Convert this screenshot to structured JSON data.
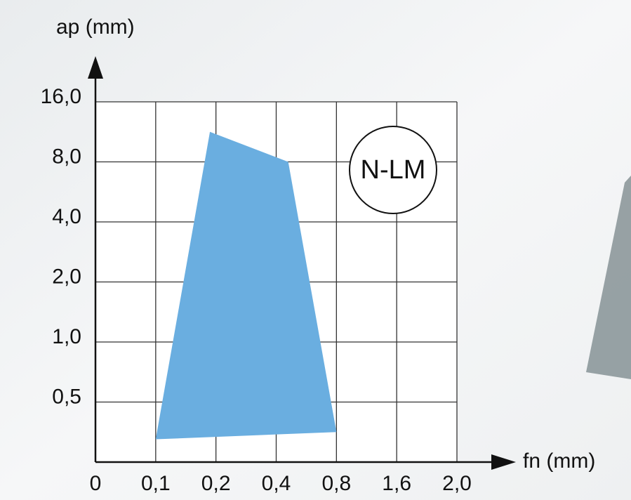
{
  "chart_data": {
    "type": "area",
    "xlabel": "fn (mm)",
    "ylabel": "ap (mm)",
    "label": "N-LM",
    "x": [
      0.1,
      0.19,
      0.48,
      0.8
    ],
    "values": [
      0.19,
      12,
      8,
      0.25
    ],
    "color": "#6aaee0",
    "xlim": [
      0,
      2.0
    ],
    "ylim": [
      0,
      16.0
    ],
    "xticks": [
      0,
      {
        "value": 0.1,
        "label": "0,1"
      },
      {
        "value": 0.2,
        "label": "0,2"
      },
      {
        "value": 0.4,
        "label": "0,4"
      },
      {
        "value": 0.8,
        "label": "0,8"
      },
      {
        "value": 1.6,
        "label": "1,6"
      },
      {
        "value": 2.0,
        "label": "2,0"
      }
    ],
    "yticks": [
      {
        "value": 0.5,
        "label": "0,5"
      },
      {
        "value": 1.0,
        "label": "1,0"
      },
      {
        "value": 2.0,
        "label": "2,0"
      },
      {
        "value": 4.0,
        "label": "4,0"
      },
      {
        "value": 8.0,
        "label": "8,0"
      },
      {
        "value": 16.0,
        "label": "16,0"
      }
    ],
    "grid": true
  }
}
